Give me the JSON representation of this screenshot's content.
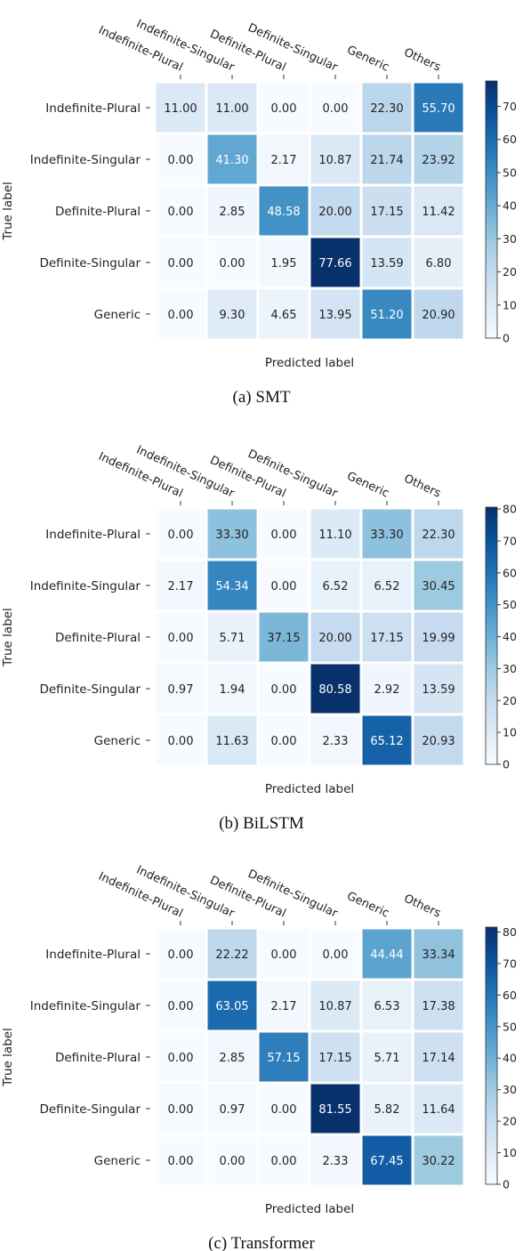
{
  "chart_data": [
    {
      "type": "heatmap",
      "caption": "(a) SMT",
      "categories_x": [
        "Indefinite-Plural",
        "Indefinite-Singular",
        "Definite-Plural",
        "Definite-Singular",
        "Generic",
        "Others"
      ],
      "categories_y": [
        "Indefinite-Plural",
        "Indefinite-Singular",
        "Definite-Plural",
        "Definite-Singular",
        "Generic"
      ],
      "values": [
        [
          11.0,
          11.0,
          0.0,
          0.0,
          22.3,
          55.7
        ],
        [
          0.0,
          41.3,
          2.17,
          10.87,
          21.74,
          23.92
        ],
        [
          0.0,
          2.85,
          48.58,
          20.0,
          17.15,
          11.42
        ],
        [
          0.0,
          0.0,
          1.95,
          77.66,
          13.59,
          6.8
        ],
        [
          0.0,
          9.3,
          4.65,
          13.95,
          51.2,
          20.9
        ]
      ],
      "value_labels": [
        [
          "11.00",
          "11.00",
          "0.00",
          "0.00",
          "22.30",
          "55.70"
        ],
        [
          "0.00",
          "41.30",
          "2.17",
          "10.87",
          "21.74",
          "23.92"
        ],
        [
          "0.00",
          "2.85",
          "48.58",
          "20.00",
          "17.15",
          "11.42"
        ],
        [
          "0.00",
          "0.00",
          "1.95",
          "77.66",
          "13.59",
          "6.80"
        ],
        [
          "0.00",
          "9.30",
          "4.65",
          "13.95",
          "51.20",
          "20.90"
        ]
      ],
      "xlabel": "Predicted label",
      "ylabel": "True label",
      "colorbar_range": [
        0,
        77.66
      ],
      "colorbar_ticks": [
        0,
        10,
        20,
        30,
        40,
        50,
        60,
        70
      ],
      "colormap": [
        "#f7fbff",
        "#deebf7",
        "#c6dbef",
        "#9ecae1",
        "#6baed6",
        "#4292c6",
        "#2171b5",
        "#08519c",
        "#08306b"
      ]
    },
    {
      "type": "heatmap",
      "caption": "(b) BiLSTM",
      "categories_x": [
        "Indefinite-Plural",
        "Indefinite-Singular",
        "Definite-Plural",
        "Definite-Singular",
        "Generic",
        "Others"
      ],
      "categories_y": [
        "Indefinite-Plural",
        "Indefinite-Singular",
        "Definite-Plural",
        "Definite-Singular",
        "Generic"
      ],
      "values": [
        [
          0.0,
          33.3,
          0.0,
          11.1,
          33.3,
          22.3
        ],
        [
          2.17,
          54.34,
          0.0,
          6.52,
          6.52,
          30.45
        ],
        [
          0.0,
          5.71,
          37.15,
          20.0,
          17.15,
          19.99
        ],
        [
          0.97,
          1.94,
          0.0,
          80.58,
          2.92,
          13.59
        ],
        [
          0.0,
          11.63,
          0.0,
          2.33,
          65.12,
          20.93
        ]
      ],
      "value_labels": [
        [
          "0.00",
          "33.30",
          "0.00",
          "11.10",
          "33.30",
          "22.30"
        ],
        [
          "2.17",
          "54.34",
          "0.00",
          "6.52",
          "6.52",
          "30.45"
        ],
        [
          "0.00",
          "5.71",
          "37.15",
          "20.00",
          "17.15",
          "19.99"
        ],
        [
          "0.97",
          "1.94",
          "0.00",
          "80.58",
          "2.92",
          "13.59"
        ],
        [
          "0.00",
          "11.63",
          "0.00",
          "2.33",
          "65.12",
          "20.93"
        ]
      ],
      "xlabel": "Predicted label",
      "ylabel": "True label",
      "colorbar_range": [
        0,
        80.58
      ],
      "colorbar_ticks": [
        0,
        10,
        20,
        30,
        40,
        50,
        60,
        70,
        80
      ],
      "colormap": [
        "#f7fbff",
        "#deebf7",
        "#c6dbef",
        "#9ecae1",
        "#6baed6",
        "#4292c6",
        "#2171b5",
        "#08519c",
        "#08306b"
      ]
    },
    {
      "type": "heatmap",
      "caption": "(c) Transformer",
      "categories_x": [
        "Indefinite-Plural",
        "Indefinite-Singular",
        "Definite-Plural",
        "Definite-Singular",
        "Generic",
        "Others"
      ],
      "categories_y": [
        "Indefinite-Plural",
        "Indefinite-Singular",
        "Definite-Plural",
        "Definite-Singular",
        "Generic"
      ],
      "values": [
        [
          0.0,
          22.22,
          0.0,
          0.0,
          44.44,
          33.34
        ],
        [
          0.0,
          63.05,
          2.17,
          10.87,
          6.53,
          17.38
        ],
        [
          0.0,
          2.85,
          57.15,
          17.15,
          5.71,
          17.14
        ],
        [
          0.0,
          0.97,
          0.0,
          81.55,
          5.82,
          11.64
        ],
        [
          0.0,
          0.0,
          0.0,
          2.33,
          67.45,
          30.22
        ]
      ],
      "value_labels": [
        [
          "0.00",
          "22.22",
          "0.00",
          "0.00",
          "44.44",
          "33.34"
        ],
        [
          "0.00",
          "63.05",
          "2.17",
          "10.87",
          "6.53",
          "17.38"
        ],
        [
          "0.00",
          "2.85",
          "57.15",
          "17.15",
          "5.71",
          "17.14"
        ],
        [
          "0.00",
          "0.97",
          "0.00",
          "81.55",
          "5.82",
          "11.64"
        ],
        [
          "0.00",
          "0.00",
          "0.00",
          "2.33",
          "67.45",
          "30.22"
        ]
      ],
      "xlabel": "Predicted label",
      "ylabel": "True label",
      "colorbar_range": [
        0,
        81.55
      ],
      "colorbar_ticks": [
        0,
        10,
        20,
        30,
        40,
        50,
        60,
        70,
        80
      ],
      "colormap": [
        "#f7fbff",
        "#deebf7",
        "#c6dbef",
        "#9ecae1",
        "#6baed6",
        "#4292c6",
        "#2171b5",
        "#08519c",
        "#08306b"
      ]
    }
  ]
}
